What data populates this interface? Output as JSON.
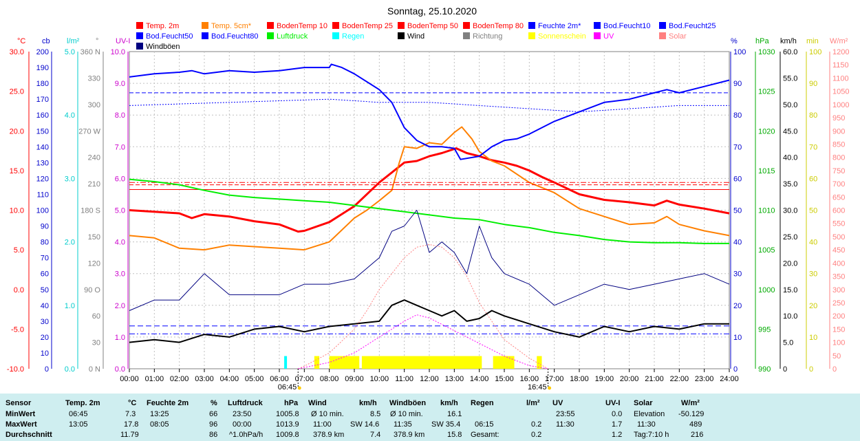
{
  "chart_data": {
    "type": "line",
    "title": "Sonntag, 25.10.2020",
    "x_ticks": [
      "00:00",
      "01:00",
      "02:00",
      "03:00",
      "04:00",
      "05:00",
      "06:00",
      "07:00",
      "08:00",
      "09:00",
      "10:00",
      "11:00",
      "12:00",
      "13:00",
      "14:00",
      "15:00",
      "16:00",
      "17:00",
      "18:00",
      "19:00",
      "20:00",
      "21:00",
      "22:00",
      "23:00",
      "24:00"
    ],
    "sunrise": "06:45",
    "sunset": "16:45",
    "axes": [
      {
        "unit": "°C",
        "color": "#ff0000",
        "min": -10,
        "max": 30,
        "ticks": [
          "30.0",
          "25.0",
          "20.0",
          "15.0",
          "10.0",
          "5.0",
          "0.0",
          "-5.0",
          "-10.0"
        ]
      },
      {
        "unit": "cb",
        "color": "#0000cc",
        "min": 0,
        "max": 200,
        "ticks": [
          "200",
          "190",
          "180",
          "170",
          "160",
          "150",
          "140",
          "130",
          "120",
          "110",
          "100",
          "90",
          "80",
          "70",
          "60",
          "50",
          "40",
          "30",
          "20",
          "10",
          "0"
        ]
      },
      {
        "unit": "l/m²",
        "color": "#00cccc",
        "min": 0,
        "max": 5,
        "ticks": [
          "5.0",
          "4.0",
          "3.0",
          "2.0",
          "1.0",
          "0.0"
        ]
      },
      {
        "unit": "°",
        "color": "#808080",
        "min": 0,
        "max": 360,
        "ticks": [
          "360 N",
          "330",
          "300",
          "270 W",
          "240",
          "210",
          "180 S",
          "150",
          "120",
          "90 O",
          "60",
          "30",
          "0 N"
        ]
      },
      {
        "unit": "UV-I",
        "color": "#cc00cc",
        "min": 0,
        "max": 10,
        "ticks": [
          "10.0",
          "9.0",
          "8.0",
          "7.0",
          "6.0",
          "5.0",
          "4.0",
          "3.0",
          "2.0",
          "1.0",
          "0.0"
        ]
      },
      {
        "unit": "%",
        "color": "#0000cc",
        "min": 0,
        "max": 100,
        "ticks": [
          "100",
          "90",
          "80",
          "70",
          "60",
          "50",
          "40",
          "30",
          "20",
          "10",
          "0"
        ]
      },
      {
        "unit": "hPa",
        "color": "#00aa00",
        "min": 990,
        "max": 1030,
        "ticks": [
          "1030",
          "1025",
          "1020",
          "1015",
          "1010",
          "1005",
          "1000",
          "995",
          "990"
        ]
      },
      {
        "unit": "km/h",
        "color": "#000000",
        "min": 0,
        "max": 60,
        "ticks": [
          "60.0",
          "55.0",
          "50.0",
          "45.0",
          "40.0",
          "35.0",
          "30.0",
          "25.0",
          "20.0",
          "15.0",
          "10.0",
          "5.0",
          "0"
        ]
      },
      {
        "unit": "min",
        "color": "#cccc00",
        "min": 0,
        "max": 100,
        "ticks": [
          "100",
          "90",
          "80",
          "70",
          "60",
          "50",
          "40",
          "30",
          "20",
          "10",
          "0"
        ]
      },
      {
        "unit": "W/m²",
        "color": "#ff8080",
        "min": 0,
        "max": 1200,
        "ticks": [
          "1200",
          "1150",
          "1100",
          "1050",
          "1000",
          "950",
          "900",
          "850",
          "800",
          "750",
          "700",
          "650",
          "600",
          "550",
          "500",
          "450",
          "400",
          "350",
          "300",
          "250",
          "200",
          "150",
          "100",
          "50",
          "0"
        ]
      }
    ],
    "legend": [
      {
        "name": "Temp. 2m",
        "color": "#ff0000"
      },
      {
        "name": "Temp. 5cm*",
        "color": "#ff8000"
      },
      {
        "name": "BodenTemp 10",
        "color": "#ff0000"
      },
      {
        "name": "BodenTemp 25",
        "color": "#ff0000"
      },
      {
        "name": "BodenTemp 50",
        "color": "#ff0000"
      },
      {
        "name": "BodenTemp 80",
        "color": "#ff0000"
      },
      {
        "name": "Feuchte 2m*",
        "color": "#0000ff"
      },
      {
        "name": "Bod.Feucht10",
        "color": "#0000ff"
      },
      {
        "name": "Bod.Feucht25",
        "color": "#0000ff"
      },
      {
        "name": "Bod.Feucht50",
        "color": "#0000ff"
      },
      {
        "name": "Bod.Feucht80",
        "color": "#0000ff"
      },
      {
        "name": "Luftdruck",
        "color": "#00ee00"
      },
      {
        "name": "Regen",
        "color": "#00ffff"
      },
      {
        "name": "Wind",
        "color": "#000000"
      },
      {
        "name": "Richtung",
        "color": "#808080"
      },
      {
        "name": "Sonnenschein",
        "color": "#ffff00"
      },
      {
        "name": "UV",
        "color": "#ff00ff"
      },
      {
        "name": "Solar",
        "color": "#ff8080"
      },
      {
        "name": "Windböen",
        "color": "#000080"
      }
    ],
    "series": [
      {
        "name": "Temp. 2m",
        "axis": "°C",
        "color": "#ff0000",
        "x": [
          0,
          1,
          2,
          2.5,
          3,
          4,
          5,
          6,
          6.75,
          7,
          8,
          9,
          10,
          10.8,
          11,
          11.5,
          12,
          12.5,
          13.08,
          13.5,
          14,
          14.5,
          15,
          15.5,
          16,
          16.5,
          17,
          18,
          19,
          20,
          21,
          21.5,
          22,
          23,
          24
        ],
        "y": [
          10.0,
          9.8,
          9.6,
          9.0,
          9.5,
          9.2,
          8.6,
          8.2,
          7.3,
          7.4,
          8.5,
          10.5,
          13.5,
          15.5,
          16.0,
          16.2,
          16.8,
          17.2,
          17.8,
          17.2,
          16.8,
          16.3,
          16.0,
          15.6,
          15.0,
          14.2,
          13.5,
          12.0,
          11.3,
          11.0,
          10.6,
          11.2,
          10.7,
          10.2,
          9.6
        ]
      },
      {
        "name": "Temp. 5cm*",
        "axis": "°C",
        "color": "#ff8000",
        "x": [
          0,
          1,
          2,
          3,
          4,
          5,
          6,
          7,
          8,
          9,
          9.5,
          10,
          10.5,
          10.8,
          11,
          11.5,
          12,
          12.5,
          13,
          13.3,
          13.7,
          14,
          14.5,
          15,
          16,
          17,
          18,
          19,
          20,
          21,
          21.5,
          22,
          23,
          24
        ],
        "y": [
          6.8,
          6.5,
          5.2,
          5.0,
          5.6,
          5.4,
          5.2,
          5.0,
          6.0,
          9.0,
          10.0,
          11.2,
          12.5,
          16.0,
          18.0,
          17.8,
          18.5,
          18.3,
          19.8,
          20.5,
          19.0,
          17.4,
          16.2,
          15.6,
          13.5,
          12.2,
          10.2,
          9.2,
          8.2,
          8.4,
          9.2,
          8.2,
          7.4,
          6.8
        ]
      },
      {
        "name": "BodenTemp 10",
        "axis": "°C",
        "color": "#ff0000",
        "x": [
          0,
          24
        ],
        "y": [
          13.5,
          13.5
        ]
      },
      {
        "name": "BodenTemp 25",
        "axis": "°C",
        "color": "#ff0000",
        "x": [
          0,
          24
        ],
        "y": [
          13.2,
          13.2
        ]
      },
      {
        "name": "BodenTemp 50",
        "axis": "°C",
        "color": "#ff0000",
        "x": [
          0,
          24
        ],
        "y": [
          12.6,
          12.6
        ]
      },
      {
        "name": "Feuchte 2m*",
        "axis": "%",
        "color": "#0000ff",
        "x": [
          0,
          1,
          2,
          2.5,
          3,
          4,
          5,
          6,
          7,
          7.5,
          8,
          8.08,
          8.5,
          9,
          10,
          10.5,
          11,
          11.5,
          12,
          12.5,
          13,
          13.25,
          14,
          14.5,
          15,
          15.5,
          16,
          17,
          18,
          19,
          20,
          21,
          21.5,
          22,
          23,
          24
        ],
        "y": [
          92,
          93,
          93.5,
          94,
          93,
          94,
          93.5,
          94,
          95,
          95,
          95,
          96,
          95,
          93,
          88,
          84,
          76,
          72,
          70,
          70,
          69.5,
          66,
          67,
          70,
          72,
          72.5,
          74,
          78,
          81,
          84,
          85,
          87,
          88,
          87,
          89,
          91
        ]
      },
      {
        "name": "Bod.Feucht10",
        "axis": "%",
        "color": "#0000ff",
        "x": [
          0,
          24
        ],
        "y": [
          87,
          87
        ]
      },
      {
        "name": "Bod.Feucht25",
        "axis": "%",
        "color": "#0000ff",
        "x": [
          0,
          24
        ],
        "y": [
          13.5,
          13.5
        ]
      },
      {
        "name": "Bod.Feucht50",
        "axis": "%",
        "color": "#0000ff",
        "x": [
          0,
          24
        ],
        "y": [
          11,
          11
        ]
      },
      {
        "name": "Bod.Feucht80",
        "axis": "%",
        "color": "#0000ff",
        "x": [
          0,
          2,
          4,
          6,
          8,
          10,
          12,
          14,
          16,
          18,
          20,
          22,
          24
        ],
        "y": [
          83,
          83.5,
          84,
          84.5,
          85,
          84,
          84,
          83,
          82,
          81,
          82,
          83,
          83
        ]
      },
      {
        "name": "Luftdruck",
        "axis": "hPa",
        "color": "#00ee00",
        "x": [
          0,
          1,
          2,
          3,
          4,
          5,
          6,
          7,
          8,
          9,
          10,
          11,
          12,
          13,
          14,
          15,
          16,
          17,
          18,
          19,
          20,
          21,
          22,
          23,
          24
        ],
        "y": [
          1013.9,
          1013.6,
          1013.2,
          1012.5,
          1011.9,
          1011.6,
          1011.4,
          1011.2,
          1011.0,
          1010.6,
          1010.2,
          1009.8,
          1009.4,
          1009.0,
          1008.8,
          1008.2,
          1007.8,
          1007.2,
          1006.8,
          1006.3,
          1006.0,
          1005.9,
          1005.9,
          1005.8,
          1005.8
        ]
      },
      {
        "name": "Wind",
        "axis": "km/h",
        "color": "#000000",
        "x": [
          0,
          1,
          2,
          3,
          4,
          5,
          6,
          7,
          8,
          9,
          10,
          10.5,
          11,
          11.5,
          12,
          12.5,
          13,
          13.5,
          14,
          14.5,
          15,
          16,
          17,
          18,
          19,
          20,
          21,
          22,
          23,
          24
        ],
        "y": [
          5,
          5.5,
          5,
          6.5,
          6,
          7.5,
          8,
          7,
          8,
          8.5,
          9,
          12,
          13,
          12,
          11,
          10,
          11,
          9,
          9.5,
          11,
          10,
          8.5,
          7,
          6,
          8,
          7,
          8,
          7.5,
          8.5,
          8.5
        ]
      },
      {
        "name": "Windböen",
        "axis": "km/h",
        "color": "#000080",
        "x": [
          0,
          1,
          2,
          3,
          4,
          5,
          6,
          7,
          8,
          9,
          10,
          10.5,
          11,
          11.5,
          12,
          12.5,
          13,
          13.5,
          14,
          14.5,
          15,
          16,
          17,
          18,
          19,
          20,
          21,
          22,
          23,
          24
        ],
        "y": [
          11,
          13,
          13,
          18,
          14,
          14,
          14,
          16,
          16,
          17,
          21,
          26,
          27,
          30,
          22,
          24,
          22,
          18,
          27,
          21,
          18,
          16,
          12,
          14,
          16,
          15,
          16,
          17,
          18,
          16
        ]
      },
      {
        "name": "Solar",
        "axis": "W/m²",
        "color": "#ff8080",
        "x": [
          6.75,
          7,
          8,
          9,
          9.5,
          10,
          10.5,
          11,
          11.5,
          12,
          12.5,
          13,
          13.5,
          14,
          14.5,
          15,
          16,
          16.75
        ],
        "y": [
          0,
          10,
          60,
          150,
          220,
          300,
          360,
          420,
          460,
          470,
          460,
          420,
          350,
          250,
          180,
          110,
          40,
          0
        ]
      },
      {
        "name": "UV",
        "axis": "UV-I",
        "color": "#ff00ff",
        "x": [
          6.75,
          8,
          9,
          10,
          11,
          11.5,
          12,
          13,
          14,
          15,
          16,
          16.75
        ],
        "y": [
          0,
          0.2,
          0.5,
          1.0,
          1.5,
          1.7,
          1.6,
          1.2,
          0.8,
          0.4,
          0.1,
          0
        ]
      },
      {
        "name": "Regen",
        "axis": "l/m²",
        "color": "#00ffff",
        "bars": [
          {
            "x": 6.25,
            "y": 0.2
          }
        ]
      },
      {
        "name": "Sonnenschein",
        "axis": "min",
        "color": "#ffff00",
        "bars": [
          {
            "x0": 7.4,
            "x1": 7.6,
            "y": 4
          },
          {
            "x0": 8.0,
            "x1": 9.2,
            "y": 4
          },
          {
            "x0": 9.3,
            "x1": 14.1,
            "y": 4
          },
          {
            "x0": 14.55,
            "x1": 15.4,
            "y": 4
          },
          {
            "x0": 16.3,
            "x1": 16.5,
            "y": 4
          }
        ]
      }
    ]
  },
  "stats": {
    "headers": {
      "sensor": "Sensor",
      "temp": "Temp. 2m",
      "temp_unit": "°C",
      "feuchte": "Feuchte 2m",
      "feuchte_unit": "%",
      "luft": "Luftdruck",
      "luft_unit": "hPa",
      "wind": "Wind",
      "wind_unit": "km/h",
      "boeen": "Windböen",
      "boeen_unit": "km/h",
      "regen": "Regen",
      "regen_unit": "l/m²",
      "uv": "UV",
      "uv_unit": "UV-I",
      "solar": "Solar",
      "solar_unit": "W/m²"
    },
    "rows": [
      {
        "label": "MinWert",
        "temp_time": "06:45",
        "temp_val": "7.3",
        "feuchte_time": "13:25",
        "feuchte_val": "66",
        "luft_time": "23:50",
        "luft_val": "1005.8",
        "wind_mid": "Ø 10 min.",
        "wind_val": "8.5",
        "boeen_mid": "Ø 10 min.",
        "boeen_val": "16.1",
        "regen_time": "",
        "regen_val": "",
        "uv_time": "23:55",
        "uv_val": "0.0",
        "solar_mid": "Elevation",
        "solar_val": "-50.129"
      },
      {
        "label": "MaxWert",
        "temp_time": "13:05",
        "temp_val": "17.8",
        "feuchte_time": "08:05",
        "feuchte_val": "96",
        "luft_time": "00:00",
        "luft_val": "1013.9",
        "wind_time": "11:00",
        "wind_mid": "SW 14.6",
        "boeen_time": "11:35",
        "boeen_mid": "SW 35.4",
        "regen_time": "06:15",
        "regen_val": "0.2",
        "uv_time": "11:30",
        "uv_val": "1.7",
        "solar_time": "11:30",
        "solar_val": "489"
      },
      {
        "label": "Durchschnitt",
        "temp_time": "",
        "temp_val": "11.79",
        "feuchte_time": "",
        "feuchte_val": "86",
        "luft_time": "^1.0hPa/h",
        "luft_val": "1009.8",
        "wind_mid": "378.9 km",
        "wind_val": "7.4",
        "boeen_mid": "378.9 km",
        "boeen_val": "15.8",
        "regen_time": "Gesamt:",
        "regen_val": "0.2",
        "uv_time": "",
        "uv_val": "1.2",
        "solar_mid": "Tag:7:10 h",
        "solar_val": "216"
      }
    ]
  }
}
